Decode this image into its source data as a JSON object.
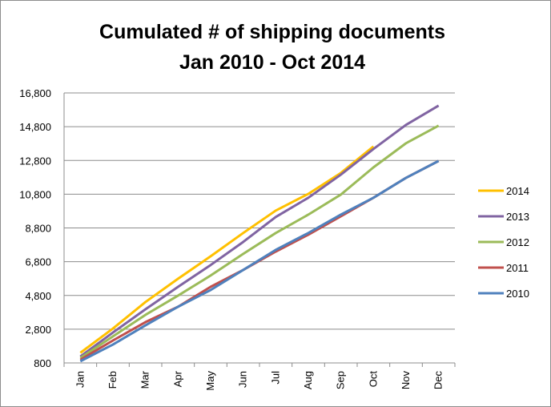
{
  "chart_data": {
    "type": "line",
    "title": "Cumulated # of shipping documents",
    "subtitle": "Jan 2010 - Oct 2014",
    "categories": [
      "Jan",
      "Feb",
      "Mar",
      "Apr",
      "May",
      "Jun",
      "Jul",
      "Aug",
      "Sep",
      "Oct",
      "Nov",
      "Dec"
    ],
    "series": [
      {
        "name": "2014",
        "color": "#ffc000",
        "values": [
          1400,
          2840,
          4410,
          5790,
          7120,
          8500,
          9830,
          10820,
          12060,
          13630,
          null,
          null
        ]
      },
      {
        "name": "2013",
        "color": "#8064a2",
        "values": [
          1180,
          2600,
          3980,
          5310,
          6600,
          7970,
          9450,
          10590,
          11960,
          13480,
          14910,
          16050
        ]
      },
      {
        "name": "2012",
        "color": "#9bbb59",
        "values": [
          1090,
          2370,
          3650,
          4790,
          5980,
          7260,
          8500,
          9590,
          10780,
          12390,
          13820,
          14860
        ]
      },
      {
        "name": "2011",
        "color": "#c0504d",
        "values": [
          990,
          2130,
          3220,
          4130,
          5310,
          6310,
          7400,
          8400,
          9490,
          10590,
          11770,
          12770
        ]
      },
      {
        "name": "2010",
        "color": "#4f81bd",
        "values": [
          900,
          1890,
          3030,
          4130,
          5120,
          6310,
          7500,
          8500,
          9590,
          10590,
          11770,
          12770
        ]
      }
    ],
    "ylim": [
      800,
      16800
    ],
    "yticks": [
      {
        "value": 800,
        "label": "800"
      },
      {
        "value": 2800,
        "label": "2,800"
      },
      {
        "value": 4800,
        "label": "4,800"
      },
      {
        "value": 6800,
        "label": "6,800"
      },
      {
        "value": 8800,
        "label": "8,800"
      },
      {
        "value": 10800,
        "label": "10,800"
      },
      {
        "value": 12800,
        "label": "12,800"
      },
      {
        "value": 14800,
        "label": "14,800"
      },
      {
        "value": 16800,
        "label": "16,800"
      }
    ],
    "grid": true,
    "legend": "right"
  }
}
